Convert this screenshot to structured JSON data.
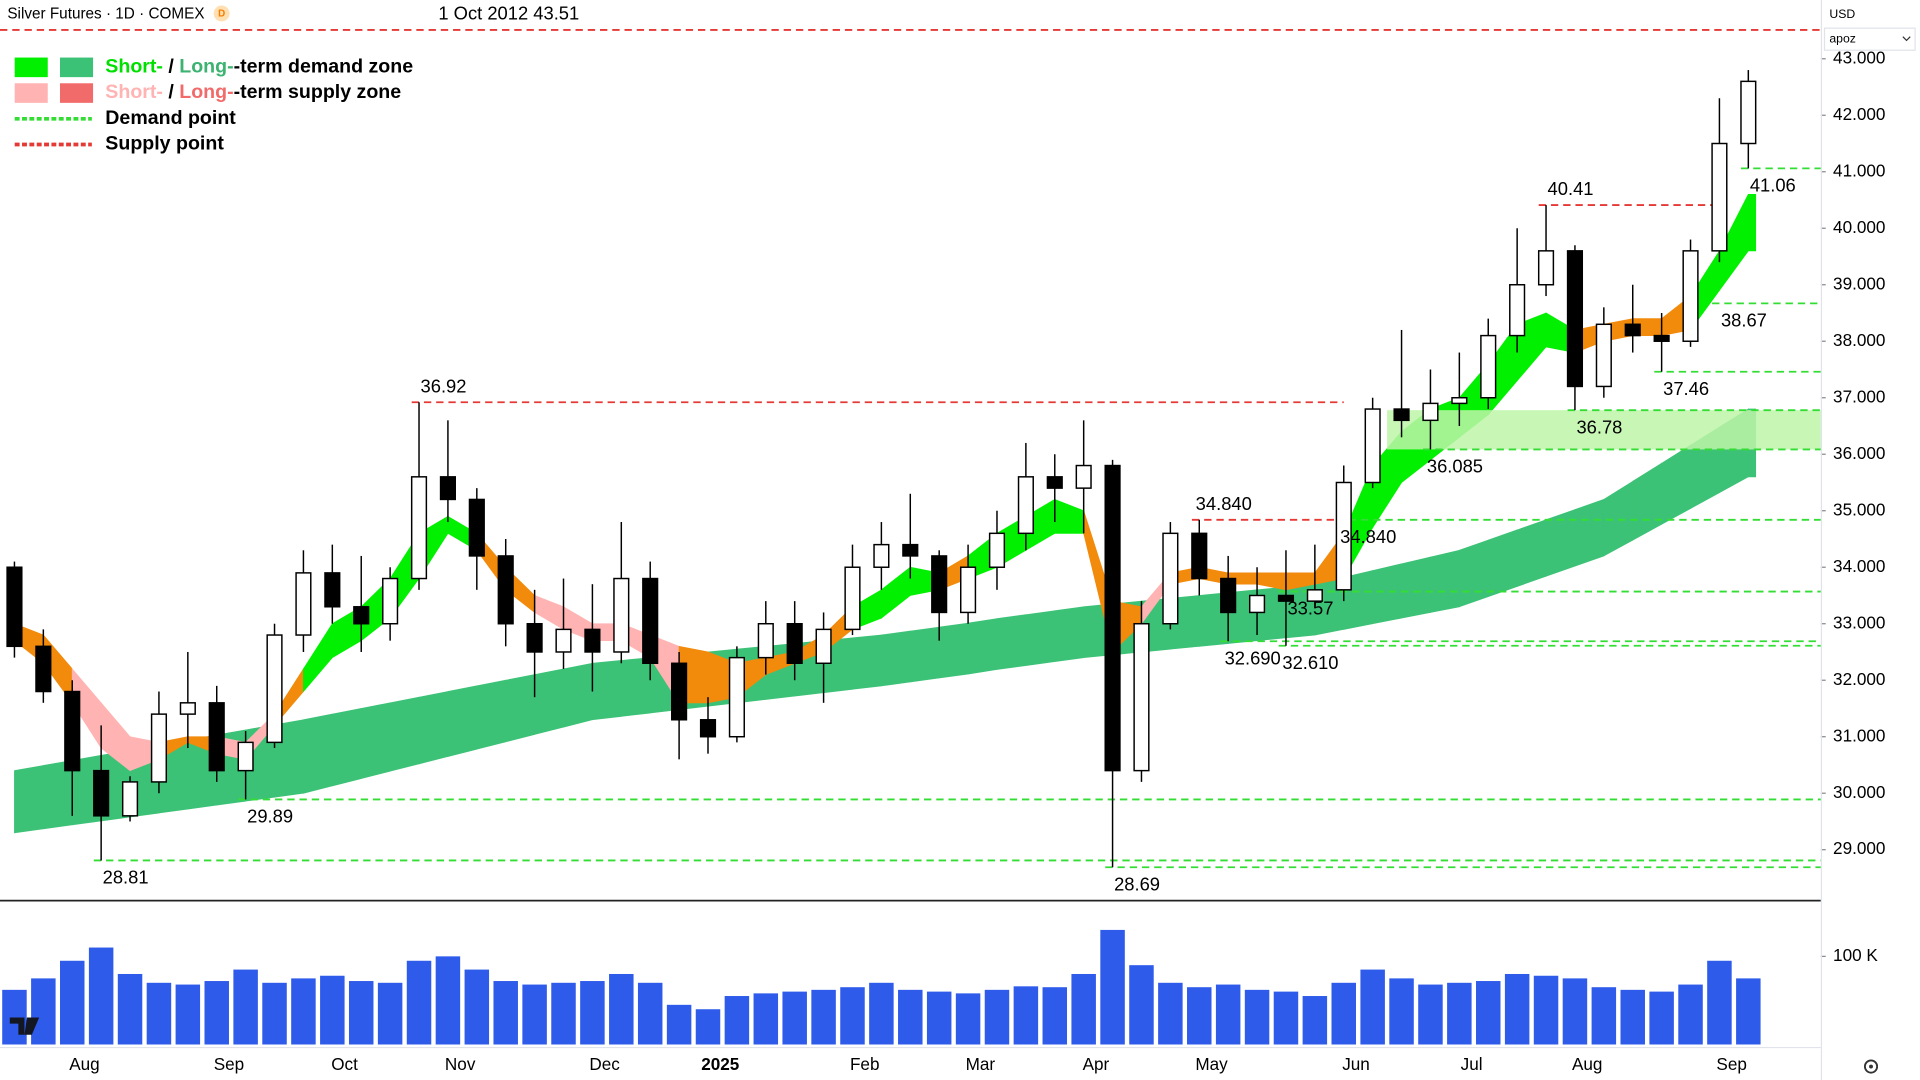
{
  "chart_data": {
    "type": "candlestick",
    "title": "Silver Futures · 1D · COMEX",
    "badge": "D",
    "annotation": "1 Oct 2012 43.51",
    "currency": "USD",
    "unit": "apoz",
    "categories": [
      null,
      null,
      "Aug",
      null,
      null,
      null,
      null,
      "Sep",
      null,
      null,
      null,
      "Oct",
      null,
      null,
      null,
      "Nov",
      null,
      null,
      null,
      null,
      "Dec",
      null,
      null,
      null,
      "2025",
      null,
      null,
      null,
      null,
      "Feb",
      null,
      null,
      null,
      "Mar",
      null,
      null,
      null,
      "Apr",
      null,
      null,
      null,
      "May",
      null,
      null,
      null,
      null,
      "Jun",
      null,
      null,
      null,
      "Jul",
      null,
      null,
      null,
      "Aug",
      null,
      null,
      null,
      null,
      "Sep",
      null
    ],
    "open": [
      34.0,
      32.6,
      31.8,
      30.4,
      29.6,
      30.2,
      31.4,
      31.6,
      30.4,
      30.9,
      32.8,
      33.9,
      33.3,
      33.0,
      33.8,
      35.6,
      35.2,
      34.2,
      33.0,
      32.5,
      32.9,
      32.5,
      33.8,
      32.3,
      31.3,
      31.0,
      32.4,
      33.0,
      32.3,
      32.9,
      34.0,
      34.4,
      34.2,
      33.2,
      34.0,
      34.6,
      35.6,
      35.4,
      35.8,
      30.4,
      33.0,
      34.6,
      33.8,
      33.2,
      33.5,
      33.4,
      33.6,
      35.5,
      36.8,
      36.6,
      36.9,
      37.0,
      38.1,
      39.0,
      39.6,
      37.2,
      38.3,
      38.1,
      38.0,
      39.6,
      41.5
    ],
    "high": [
      34.1,
      32.9,
      32.0,
      31.2,
      30.3,
      31.8,
      32.5,
      31.9,
      31.1,
      33.0,
      34.3,
      34.4,
      34.2,
      34.0,
      36.92,
      36.6,
      35.4,
      34.5,
      33.6,
      33.8,
      33.7,
      34.8,
      34.1,
      32.5,
      31.7,
      32.6,
      33.4,
      33.4,
      33.2,
      34.4,
      34.8,
      35.3,
      34.3,
      34.4,
      35.0,
      36.2,
      36.0,
      36.6,
      35.9,
      33.4,
      34.8,
      34.84,
      34.2,
      34.0,
      34.3,
      34.4,
      35.8,
      37.0,
      38.2,
      37.5,
      37.8,
      38.4,
      40.0,
      40.41,
      39.7,
      38.6,
      39.0,
      38.5,
      39.8,
      42.3,
      42.8
    ],
    "low": [
      32.4,
      31.6,
      29.6,
      28.81,
      29.5,
      30.0,
      30.8,
      30.2,
      29.89,
      30.8,
      32.5,
      33.0,
      32.5,
      32.7,
      33.6,
      34.8,
      33.6,
      32.6,
      31.7,
      32.2,
      31.8,
      32.3,
      32.0,
      30.6,
      30.7,
      30.9,
      32.1,
      32.0,
      31.6,
      32.8,
      33.6,
      33.8,
      32.7,
      33.0,
      33.6,
      34.3,
      34.8,
      34.6,
      28.69,
      30.2,
      32.9,
      33.5,
      32.69,
      32.8,
      32.61,
      33.3,
      33.4,
      35.4,
      36.3,
      36.085,
      36.5,
      36.8,
      37.8,
      38.8,
      36.78,
      37.0,
      37.8,
      37.46,
      37.9,
      39.4,
      41.06
    ],
    "close": [
      32.6,
      31.8,
      30.4,
      29.6,
      30.2,
      31.4,
      31.6,
      30.4,
      30.9,
      32.8,
      33.9,
      33.3,
      33.0,
      33.8,
      35.6,
      35.2,
      34.2,
      33.0,
      32.5,
      32.9,
      32.5,
      33.8,
      32.3,
      31.3,
      31.0,
      32.4,
      33.0,
      32.3,
      32.9,
      34.0,
      34.4,
      34.2,
      33.2,
      34.0,
      34.6,
      35.6,
      35.4,
      35.8,
      30.4,
      33.0,
      34.6,
      33.8,
      33.2,
      33.5,
      33.4,
      33.6,
      35.5,
      36.8,
      36.6,
      36.9,
      37.0,
      38.1,
      39.0,
      39.6,
      37.2,
      38.3,
      38.1,
      38.0,
      39.6,
      41.5,
      42.6
    ],
    "up_color": "#ffffff",
    "down_color": "#000000",
    "ylim": [
      28.11,
      44.04
    ],
    "yticks": [
      {
        "value": 29,
        "label": "29.000"
      },
      {
        "value": 30,
        "label": "30.000"
      },
      {
        "value": 31,
        "label": "31.000"
      },
      {
        "value": 32,
        "label": "32.000"
      },
      {
        "value": 33,
        "label": "33.000"
      },
      {
        "value": 34,
        "label": "34.000"
      },
      {
        "value": 35,
        "label": "35.000"
      },
      {
        "value": 36,
        "label": "36.000"
      },
      {
        "value": 37,
        "label": "37.000"
      },
      {
        "value": 38,
        "label": "38.000"
      },
      {
        "value": 39,
        "label": "39.000"
      },
      {
        "value": 40,
        "label": "40.000"
      },
      {
        "value": 41,
        "label": "41.000"
      },
      {
        "value": 42,
        "label": "42.000"
      },
      {
        "value": 43,
        "label": "43.000"
      }
    ],
    "short_term_zone": {
      "upper": [
        33.0,
        32.8,
        32.2,
        31.6,
        31.0,
        30.9,
        31.0,
        31.0,
        30.9,
        31.4,
        32.2,
        33.0,
        33.3,
        33.8,
        34.6,
        34.9,
        34.6,
        34.0,
        33.5,
        33.3,
        33.0,
        33.0,
        32.8,
        32.6,
        32.5,
        32.3,
        32.4,
        32.5,
        32.8,
        33.3,
        33.6,
        34.0,
        33.9,
        34.2,
        34.6,
        34.9,
        35.2,
        35.0,
        33.4,
        33.3,
        33.9,
        34.0,
        33.9,
        33.9,
        33.9,
        33.9,
        34.6,
        35.8,
        36.4,
        36.8,
        37.0,
        37.6,
        38.3,
        38.5,
        38.2,
        38.3,
        38.4,
        38.4,
        38.8,
        39.6,
        40.6
      ],
      "lower": [
        32.7,
        32.3,
        31.6,
        30.8,
        30.4,
        30.6,
        30.9,
        30.7,
        30.6,
        31.2,
        31.8,
        32.4,
        32.7,
        33.1,
        33.8,
        34.6,
        34.3,
        33.6,
        33.2,
        32.9,
        32.7,
        32.7,
        32.4,
        31.6,
        31.6,
        31.7,
        32.1,
        32.3,
        32.5,
        32.9,
        33.1,
        33.5,
        33.6,
        33.8,
        34.0,
        34.3,
        34.6,
        34.6,
        32.5,
        33.0,
        33.7,
        33.8,
        33.7,
        33.7,
        33.6,
        33.7,
        33.8,
        34.7,
        35.5,
        35.9,
        36.3,
        36.7,
        37.3,
        37.9,
        37.8,
        38.0,
        38.1,
        38.1,
        38.2,
        38.9,
        39.6
      ],
      "colors": [
        "#f28a0c",
        "#f28a0c",
        "#ffb3b3",
        "#ffb3b3",
        "#ffb3b3",
        "#f28a0c",
        "#f28a0c",
        "#ffb3b3",
        "#ffb3b3",
        "#f28a0c",
        "#00f000",
        "#00f000",
        "#00f000",
        "#00f000",
        "#00f000",
        "#00f000",
        "#f28a0c",
        "#f28a0c",
        "#ffb3b3",
        "#ffb3b3",
        "#ffb3b3",
        "#ffb3b3",
        "#ffb3b3",
        "#f28a0c",
        "#f28a0c",
        "#f28a0c",
        "#f28a0c",
        "#f28a0c",
        "#f28a0c",
        "#00f000",
        "#00f000",
        "#00f000",
        "#f28a0c",
        "#00f000",
        "#00f000",
        "#00f000",
        "#00f000",
        "#f28a0c",
        "#f28a0c",
        "#ffb3b3",
        "#f28a0c",
        "#f28a0c",
        "#f28a0c",
        "#f28a0c",
        "#f28a0c",
        "#f28a0c",
        "#00f000",
        "#00f000",
        "#00f000",
        "#00f000",
        "#00f000",
        "#00f000",
        "#00f000",
        "#00f000",
        "#f28a0c",
        "#f28a0c",
        "#f28a0c",
        "#f28a0c",
        "#00f000",
        "#00f000",
        "#00f000"
      ]
    },
    "long_term_zone": {
      "color": "#3cc276",
      "upper": [
        30.4,
        30.49,
        30.58,
        30.67,
        30.76,
        30.85,
        30.94,
        31.03,
        31.12,
        31.21,
        31.3,
        31.4,
        31.5,
        31.6,
        31.7,
        31.8,
        31.9,
        32.0,
        32.1,
        32.2,
        32.3,
        32.35,
        32.4,
        32.45,
        32.5,
        32.55,
        32.6,
        32.65,
        32.7,
        32.75,
        32.8,
        32.87,
        32.94,
        33.01,
        33.09,
        33.16,
        33.23,
        33.3,
        33.35,
        33.4,
        33.45,
        33.5,
        33.55,
        33.6,
        33.65,
        33.7,
        33.82,
        33.94,
        34.06,
        34.18,
        34.3,
        34.48,
        34.66,
        34.84,
        35.02,
        35.2,
        35.52,
        35.84,
        36.16,
        36.48,
        36.8
      ],
      "lower": [
        29.3,
        29.37,
        29.44,
        29.51,
        29.58,
        29.65,
        29.72,
        29.79,
        29.86,
        29.93,
        30.0,
        30.13,
        30.26,
        30.39,
        30.52,
        30.65,
        30.78,
        30.91,
        31.04,
        31.17,
        31.3,
        31.36,
        31.42,
        31.48,
        31.54,
        31.6,
        31.66,
        31.72,
        31.78,
        31.84,
        31.9,
        31.97,
        32.04,
        32.11,
        32.19,
        32.26,
        32.33,
        32.4,
        32.45,
        32.5,
        32.55,
        32.6,
        32.65,
        32.7,
        32.75,
        32.8,
        32.9,
        33.0,
        33.1,
        33.2,
        33.3,
        33.48,
        33.66,
        33.84,
        34.02,
        34.2,
        34.48,
        34.76,
        35.04,
        35.32,
        35.6
      ]
    },
    "zones": [
      {
        "low": 36.085,
        "high": 36.78,
        "start": 48,
        "color": "#bdf5a8"
      }
    ],
    "supply_color": "#e53935",
    "demand_color": "#33dd33",
    "levels": [
      {
        "value": 43.51,
        "kind": "supply",
        "start": 0
      },
      {
        "value": 36.92,
        "label": "36.92",
        "kind": "supply",
        "start": 14,
        "end": 46
      },
      {
        "value": 40.41,
        "label": "40.41",
        "kind": "supply",
        "start": 53,
        "end": 59
      },
      {
        "value": 34.84,
        "label": "34.840",
        "kind": "supply",
        "start": 41,
        "end": 46
      },
      {
        "value": 41.06,
        "label": "41.06",
        "kind": "demand",
        "start": 60
      },
      {
        "value": 38.67,
        "label": "38.67",
        "kind": "demand",
        "start": 59
      },
      {
        "value": 37.46,
        "label": "37.46",
        "kind": "demand",
        "start": 57
      },
      {
        "value": 36.78,
        "label": "36.78",
        "kind": "demand",
        "start": 54
      },
      {
        "value": 36.085,
        "label": "36.085",
        "kind": "demand",
        "start": 49
      },
      {
        "value": 34.84,
        "label": "34.840",
        "kind": "demand",
        "start": 46
      },
      {
        "value": 33.57,
        "label": "33.57",
        "kind": "demand",
        "start": 44
      },
      {
        "value": 32.69,
        "label": "32.690",
        "kind": "demand",
        "start": 42
      },
      {
        "value": 32.61,
        "label": "32.610",
        "kind": "demand",
        "start": 44
      },
      {
        "value": 29.89,
        "label": "29.89",
        "kind": "demand",
        "start": 8
      },
      {
        "value": 28.81,
        "label": "28.81",
        "kind": "demand",
        "start": 3
      },
      {
        "value": 28.69,
        "label": "28.69",
        "kind": "demand",
        "start": 38
      }
    ],
    "volume": {
      "color": "#2f5bea",
      "values": [
        62000,
        75000,
        95000,
        110000,
        80000,
        70000,
        68000,
        72000,
        85000,
        70000,
        75000,
        78000,
        72000,
        70000,
        95000,
        100000,
        85000,
        72000,
        68000,
        70000,
        72000,
        80000,
        70000,
        45000,
        40000,
        55000,
        58000,
        60000,
        62000,
        65000,
        70000,
        62000,
        60000,
        58000,
        62000,
        66000,
        65000,
        80000,
        130000,
        90000,
        70000,
        65000,
        68000,
        62000,
        60000,
        55000,
        70000,
        85000,
        75000,
        68000,
        70000,
        72000,
        80000,
        78000,
        75000,
        65000,
        62000,
        60000,
        68000,
        95000,
        75000
      ],
      "ylim": [
        0,
        157000
      ],
      "yticks": [
        {
          "value": 100000,
          "label": "100 K"
        }
      ]
    },
    "legend": [
      {
        "parts": [
          {
            "text": "Short-",
            "color": "#00e000"
          },
          {
            "text": " / ",
            "color": "#000000"
          },
          {
            "text": "Long-",
            "color": "#3cb371"
          },
          {
            "text": "-term demand zone",
            "color": "#000000"
          }
        ],
        "swatches": [
          "#00f000",
          "#3cc276"
        ]
      },
      {
        "parts": [
          {
            "text": "Short-",
            "color": "#ffb3b3"
          },
          {
            "text": " / ",
            "color": "#000000"
          },
          {
            "text": "Long-",
            "color": "#f26b6b"
          },
          {
            "text": "-term supply zone",
            "color": "#000000"
          }
        ],
        "swatches": [
          "#ffb3b3",
          "#f26b6b"
        ]
      },
      {
        "parts": [
          {
            "text": "Demand point",
            "color": "#000000"
          }
        ],
        "dash": "#33dd33"
      },
      {
        "parts": [
          {
            "text": "Supply point",
            "color": "#000000"
          }
        ],
        "dash": "#e53935"
      }
    ]
  }
}
